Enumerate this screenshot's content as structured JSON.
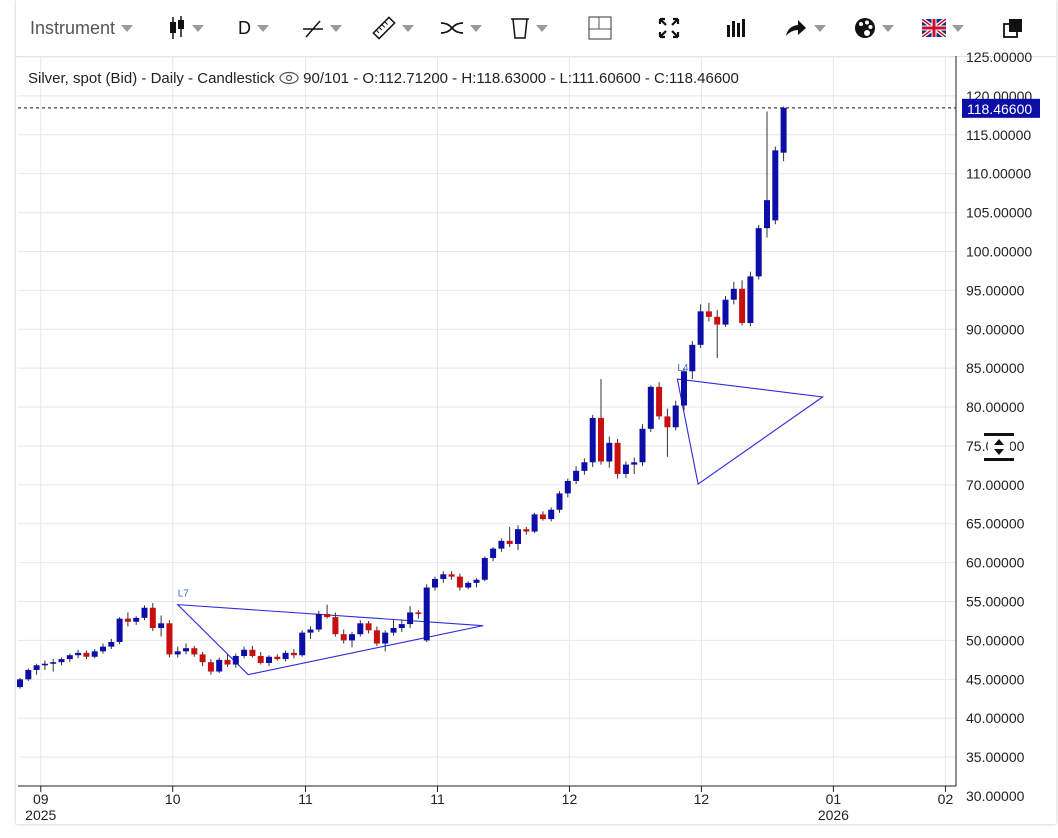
{
  "toolbar": {
    "instrument_label": "Instrument",
    "period_label": "D",
    "icons": [
      "candlestick-icon",
      "trendline-icon",
      "ruler-icon",
      "indicator-icon",
      "trash-icon",
      "crosshair-icon",
      "fullscreen-icon",
      "bar-chart-icon",
      "share-icon",
      "palette-icon",
      "uk-flag-icon",
      "popout-icon"
    ]
  },
  "header": {
    "instrument": "Silver, spot (Bid)",
    "timeframe": "Daily",
    "style": "Candlestick",
    "bars": "90/101",
    "open": "O:112.71200",
    "high": "H:118.63000",
    "low": "L:111.60600",
    "close": "C:118.46600"
  },
  "colors": {
    "up": "#0d0da8",
    "down": "#c81010",
    "wick": "#333333",
    "trendline": "#2a2adf",
    "grid": "#e8e8e8",
    "price_tag": "#0d0da8"
  },
  "chart_data": {
    "type": "candlestick",
    "title": "Silver, spot (Bid) - Daily - Candlestick",
    "ylim": [
      30,
      125
    ],
    "y_ticks": [
      "30.00000",
      "35.00000",
      "40.00000",
      "45.00000",
      "50.00000",
      "55.00000",
      "60.00000",
      "65.00000",
      "70.00000",
      "75.00000",
      "80.00000",
      "85.00000",
      "90.00000",
      "95.00000",
      "100.00000",
      "105.00000",
      "110.00000",
      "115.00000",
      "120.00000",
      "125.00000"
    ],
    "last_price": "118.46600",
    "x_labels": [
      {
        "idx": 2.5,
        "top": "09",
        "bottom": "2025"
      },
      {
        "idx": 18.4,
        "top": "10",
        "bottom": ""
      },
      {
        "idx": 34.4,
        "top": "11",
        "bottom": ""
      },
      {
        "idx": 50.3,
        "top": "11",
        "bottom": ""
      },
      {
        "idx": 66.2,
        "top": "12",
        "bottom": ""
      },
      {
        "idx": 82.1,
        "top": "12",
        "bottom": ""
      },
      {
        "idx": 98.0,
        "top": "01",
        "bottom": "2026"
      },
      {
        "idx": 111.5,
        "top": "02",
        "bottom": ""
      }
    ],
    "candles": [
      [
        44.0,
        45.2,
        43.8,
        45.0
      ],
      [
        45.0,
        46.4,
        44.8,
        46.2
      ],
      [
        46.2,
        47.0,
        45.6,
        46.8
      ],
      [
        46.8,
        47.4,
        46.2,
        47.0
      ],
      [
        47.0,
        47.6,
        46.0,
        47.2
      ],
      [
        47.2,
        47.8,
        46.8,
        47.6
      ],
      [
        47.6,
        48.3,
        47.2,
        48.1
      ],
      [
        48.1,
        48.8,
        47.7,
        48.4
      ],
      [
        48.4,
        48.7,
        47.6,
        47.9
      ],
      [
        47.9,
        48.9,
        47.7,
        48.6
      ],
      [
        48.6,
        49.6,
        48.3,
        49.2
      ],
      [
        49.2,
        50.2,
        48.9,
        49.8
      ],
      [
        49.8,
        53.0,
        49.5,
        52.8
      ],
      [
        52.8,
        53.6,
        51.8,
        52.4
      ],
      [
        52.4,
        53.1,
        52.0,
        52.9
      ],
      [
        52.9,
        54.5,
        52.6,
        54.2
      ],
      [
        54.2,
        54.8,
        51.2,
        51.6
      ],
      [
        51.6,
        53.2,
        50.5,
        52.2
      ],
      [
        52.2,
        52.6,
        47.8,
        48.2
      ],
      [
        48.2,
        49.2,
        47.8,
        48.6
      ],
      [
        48.6,
        49.6,
        48.2,
        49.0
      ],
      [
        49.0,
        49.3,
        47.9,
        48.2
      ],
      [
        48.2,
        48.5,
        46.7,
        47.2
      ],
      [
        47.2,
        47.6,
        45.6,
        46.0
      ],
      [
        46.0,
        47.8,
        45.8,
        47.5
      ],
      [
        47.5,
        48.2,
        46.6,
        46.9
      ],
      [
        46.9,
        48.3,
        46.5,
        48.0
      ],
      [
        48.0,
        49.2,
        47.7,
        48.8
      ],
      [
        48.8,
        49.3,
        47.8,
        48.0
      ],
      [
        48.0,
        48.5,
        46.9,
        47.1
      ],
      [
        47.1,
        48.1,
        46.7,
        47.9
      ],
      [
        47.9,
        48.2,
        47.4,
        47.6
      ],
      [
        47.6,
        48.7,
        47.3,
        48.4
      ],
      [
        48.4,
        48.9,
        47.7,
        48.1
      ],
      [
        48.1,
        51.3,
        47.9,
        51.0
      ],
      [
        51.0,
        51.8,
        50.2,
        51.4
      ],
      [
        51.4,
        53.8,
        51.1,
        53.4
      ],
      [
        53.4,
        54.6,
        52.8,
        53.0
      ],
      [
        53.0,
        53.6,
        50.5,
        50.8
      ],
      [
        50.8,
        51.4,
        49.6,
        50.0
      ],
      [
        50.0,
        51.1,
        49.1,
        50.8
      ],
      [
        50.8,
        52.6,
        50.5,
        52.2
      ],
      [
        52.2,
        52.5,
        50.9,
        51.3
      ],
      [
        51.3,
        51.8,
        49.3,
        49.6
      ],
      [
        49.6,
        51.3,
        48.6,
        51.0
      ],
      [
        51.0,
        52.6,
        50.6,
        51.6
      ],
      [
        51.6,
        52.7,
        51.1,
        52.1
      ],
      [
        52.1,
        54.4,
        51.6,
        53.6
      ],
      [
        53.6,
        53.9,
        52.8,
        53.4
      ],
      [
        50.0,
        57.2,
        49.8,
        56.8
      ],
      [
        56.8,
        58.2,
        56.4,
        57.9
      ],
      [
        57.9,
        58.9,
        57.4,
        58.5
      ],
      [
        58.5,
        58.9,
        57.8,
        58.2
      ],
      [
        58.2,
        58.6,
        56.4,
        56.8
      ],
      [
        56.8,
        57.6,
        56.6,
        57.4
      ],
      [
        57.4,
        58.0,
        56.8,
        57.8
      ],
      [
        57.8,
        60.8,
        57.6,
        60.6
      ],
      [
        60.6,
        62.0,
        60.2,
        61.8
      ],
      [
        61.8,
        63.1,
        61.4,
        62.8
      ],
      [
        62.8,
        64.6,
        62.0,
        62.4
      ],
      [
        62.4,
        64.8,
        61.6,
        64.3
      ],
      [
        64.3,
        64.6,
        63.6,
        64.0
      ],
      [
        64.0,
        66.4,
        63.8,
        66.2
      ],
      [
        66.2,
        66.6,
        65.4,
        65.6
      ],
      [
        65.6,
        67.1,
        65.3,
        66.8
      ],
      [
        66.8,
        69.2,
        66.4,
        68.9
      ],
      [
        68.9,
        70.8,
        68.4,
        70.5
      ],
      [
        70.5,
        72.4,
        70.1,
        71.8
      ],
      [
        71.8,
        73.4,
        71.3,
        72.9
      ],
      [
        72.9,
        79.0,
        72.3,
        78.6
      ],
      [
        78.6,
        83.6,
        72.6,
        73.0
      ],
      [
        73.0,
        76.2,
        72.2,
        75.4
      ],
      [
        75.4,
        75.9,
        70.8,
        71.4
      ],
      [
        71.4,
        73.0,
        70.9,
        72.6
      ],
      [
        72.6,
        73.5,
        71.4,
        72.9
      ],
      [
        72.9,
        77.8,
        72.4,
        77.2
      ],
      [
        77.2,
        82.8,
        76.8,
        82.6
      ],
      [
        82.6,
        83.2,
        78.4,
        78.8
      ],
      [
        78.8,
        79.8,
        73.6,
        77.4
      ],
      [
        77.4,
        80.8,
        77.0,
        80.2
      ],
      [
        80.2,
        85.0,
        79.6,
        84.6
      ],
      [
        84.6,
        88.5,
        83.6,
        88.0
      ],
      [
        88.0,
        93.2,
        87.6,
        92.3
      ],
      [
        92.3,
        93.4,
        91.0,
        91.6
      ],
      [
        91.6,
        92.5,
        86.3,
        90.6
      ],
      [
        90.6,
        94.3,
        90.3,
        93.8
      ],
      [
        93.8,
        96.1,
        93.2,
        95.2
      ],
      [
        95.2,
        96.3,
        90.5,
        90.8
      ],
      [
        90.8,
        97.4,
        90.4,
        96.8
      ],
      [
        96.8,
        103.4,
        96.4,
        103.0
      ],
      [
        103.0,
        118.0,
        101.8,
        106.6
      ],
      [
        104.0,
        113.5,
        103.5,
        113.0
      ],
      [
        112.7,
        118.63,
        111.6,
        118.466
      ]
    ],
    "trendlines": [
      {
        "label": "L7",
        "points": [
          [
            19.0,
            54.6
          ],
          [
            55.8,
            51.9
          ],
          [
            27.5,
            45.6
          ]
        ]
      },
      {
        "label": "L4",
        "points": [
          [
            79.2,
            83.6
          ],
          [
            96.7,
            81.3
          ],
          [
            81.7,
            70.1
          ]
        ]
      }
    ]
  }
}
